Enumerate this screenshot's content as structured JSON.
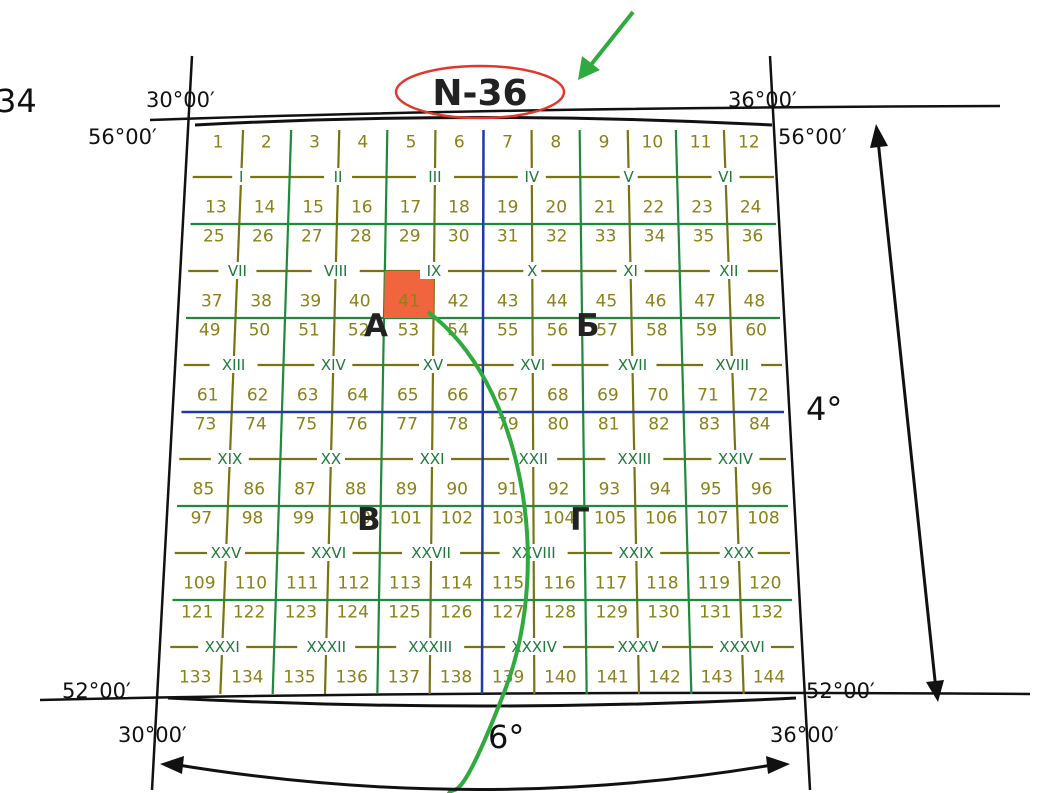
{
  "sheet": {
    "label": "N-36",
    "side_fragment": "34"
  },
  "coords": {
    "lon_top_left": "30°00′",
    "lon_top_right": "36°00′",
    "lon_bottom_left": "30°00′",
    "lon_bottom_right": "36°00′",
    "lat_top_left": "56°00′",
    "lat_top_right": "56°00′",
    "lat_bottom_left": "52°00′",
    "lat_bottom_right": "52°00′"
  },
  "span": {
    "latitude": "4°",
    "longitude": "6°"
  },
  "quadrants": [
    "А",
    "Б",
    "В",
    "Г"
  ],
  "grid": {
    "cols": 12,
    "rows": 12,
    "numbers": [
      "1",
      "2",
      "3",
      "4",
      "5",
      "6",
      "7",
      "8",
      "9",
      "10",
      "11",
      "12",
      "13",
      "14",
      "15",
      "16",
      "17",
      "18",
      "19",
      "20",
      "21",
      "22",
      "23",
      "24",
      "25",
      "26",
      "27",
      "28",
      "29",
      "30",
      "31",
      "32",
      "33",
      "34",
      "35",
      "36",
      "37",
      "38",
      "39",
      "40",
      "41",
      "42",
      "43",
      "44",
      "45",
      "46",
      "47",
      "48",
      "49",
      "50",
      "51",
      "52",
      "53",
      "54",
      "55",
      "56",
      "57",
      "58",
      "59",
      "60",
      "61",
      "62",
      "63",
      "64",
      "65",
      "66",
      "67",
      "68",
      "69",
      "70",
      "71",
      "72",
      "73",
      "74",
      "75",
      "76",
      "77",
      "78",
      "79",
      "80",
      "81",
      "82",
      "83",
      "84",
      "85",
      "86",
      "87",
      "88",
      "89",
      "90",
      "91",
      "92",
      "93",
      "94",
      "95",
      "96",
      "97",
      "98",
      "99",
      "100",
      "101",
      "102",
      "103",
      "104",
      "105",
      "106",
      "107",
      "108",
      "109",
      "110",
      "111",
      "112",
      "113",
      "114",
      "115",
      "116",
      "117",
      "118",
      "119",
      "120",
      "121",
      "122",
      "123",
      "124",
      "125",
      "126",
      "127",
      "128",
      "129",
      "130",
      "131",
      "132",
      "133",
      "134",
      "135",
      "136",
      "137",
      "138",
      "139",
      "140",
      "141",
      "142",
      "143",
      "144"
    ],
    "roman": [
      "I",
      "II",
      "III",
      "IV",
      "V",
      "VI",
      "VII",
      "VIII",
      "IX",
      "X",
      "XI",
      "XII",
      "XIII",
      "XIV",
      "XV",
      "XVI",
      "XVII",
      "XVIII",
      "XIX",
      "XX",
      "XXI",
      "XXII",
      "XXIII",
      "XXIV",
      "XXV",
      "XXVI",
      "XXVII",
      "XXVIII",
      "XXIX",
      "XXX",
      "XXXI",
      "XXXII",
      "XXXIII",
      "XXXIV",
      "XXXV",
      "XXXVI"
    ],
    "highlighted_cell": "41"
  },
  "colors": {
    "frame": "#111111",
    "green_lines": "#1f8a3c",
    "olive_lines": "#7a7410",
    "blue_lines": "#1f3aa8",
    "highlight": "#f0653e",
    "sheet_oval": "#e0392b",
    "arrow": "#2faa3f"
  }
}
